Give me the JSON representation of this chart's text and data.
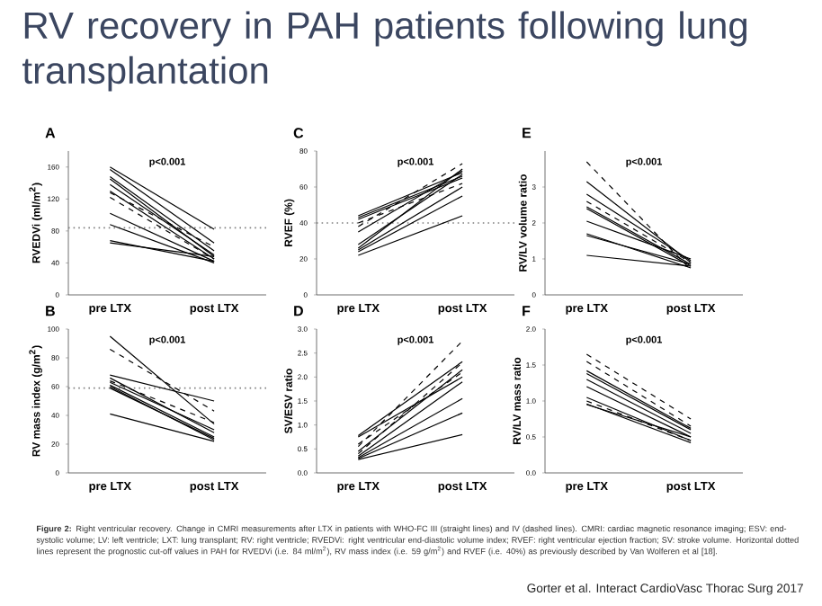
{
  "chart_data": [
    {
      "type": "line",
      "title": "A",
      "subtitle": "p<0.001",
      "ylabel": "RVEDVi (ml/m$^{2}$)",
      "categories": [
        "pre LTX",
        "post LTX"
      ],
      "ylim": [
        0,
        180
      ],
      "yticks": [
        0,
        40,
        80,
        120,
        160
      ],
      "ref_lines": [
        {
          "axis": "y",
          "value": 84,
          "color": "#808080",
          "line_style": "dotted"
        }
      ],
      "annotations": [
        "RV recovery in PAH patients following lung transplantation",
        "**Figure 2:** Right ventricular recovery. Change in CMRI measurements after LTX in patients with WHO-FC III (straight lines) and IV (dashed lines). CMRI: cardiac magnetic resonance imaging; ESV: end-systolic volume; LV: left ventricle; LXT: lung transplant; RV: right ventricle; RVEDVi: right ventricular end-diastolic volume index; RVEF: right ventricular ejection fraction; SV: stroke volume. Horizontal dotted lines represent the prognostic cut-off values in PAH for RVEDVi (i.e. 84 ml/m$^{2}$), RV mass index (i.e. 59 g/m$^{2}$) and RVEF (i.e. 40%) as previously described by Van Wolferen et al [18].",
        "Gorter et al. Interact CardioVasc Thorac Surg 2017"
      ],
      "series": [
        {
          "color": "#000000",
          "line_style": "solid",
          "values": [
            160,
            82
          ]
        },
        {
          "color": "#000000",
          "line_style": "solid",
          "values": [
            157,
            65
          ]
        },
        {
          "color": "#000000",
          "line_style": "solid",
          "values": [
            148,
            55
          ]
        },
        {
          "color": "#000000",
          "line_style": "solid",
          "values": [
            145,
            48
          ]
        },
        {
          "color": "#000000",
          "line_style": "solid",
          "values": [
            138,
            50
          ]
        },
        {
          "color": "#000000",
          "line_style": "solid",
          "values": [
            130,
            45
          ]
        },
        {
          "color": "#000000",
          "line_style": "solid",
          "values": [
            102,
            42
          ]
        },
        {
          "color": "#000000",
          "line_style": "solid",
          "values": [
            88,
            40
          ]
        },
        {
          "color": "#000000",
          "line_style": "solid",
          "values": [
            68,
            42
          ]
        },
        {
          "color": "#000000",
          "line_style": "solid",
          "values": [
            65,
            48
          ]
        },
        {
          "color": "#000000",
          "line_style": "dashed",
          "values": [
            128,
            60
          ]
        },
        {
          "color": "#000000",
          "line_style": "dashed",
          "values": [
            122,
            45
          ]
        }
      ]
    },
    {
      "type": "line",
      "title": "B",
      "subtitle": "p<0.001",
      "ylabel": "RV mass index (g/m$^{2}$)",
      "categories": [
        "pre LTX",
        "post LTX"
      ],
      "ylim": [
        0,
        100
      ],
      "yticks": [
        0,
        20,
        40,
        60,
        80,
        100
      ],
      "ref_lines": [
        {
          "axis": "y",
          "value": 59,
          "color": "#808080",
          "line_style": "dotted"
        }
      ],
      "series": [
        {
          "color": "#000000",
          "line_style": "solid",
          "values": [
            95,
            34
          ]
        },
        {
          "color": "#000000",
          "line_style": "solid",
          "values": [
            68,
            50
          ]
        },
        {
          "color": "#000000",
          "line_style": "solid",
          "values": [
            66,
            28
          ]
        },
        {
          "color": "#000000",
          "line_style": "solid",
          "values": [
            63,
            30
          ]
        },
        {
          "color": "#000000",
          "line_style": "solid",
          "values": [
            61,
            25
          ]
        },
        {
          "color": "#000000",
          "line_style": "solid",
          "values": [
            60,
            23
          ]
        },
        {
          "color": "#000000",
          "line_style": "solid",
          "values": [
            59,
            24
          ]
        },
        {
          "color": "#000000",
          "line_style": "solid",
          "values": [
            41,
            22
          ]
        },
        {
          "color": "#000000",
          "line_style": "dashed",
          "values": [
            86,
            43
          ]
        },
        {
          "color": "#000000",
          "line_style": "dashed",
          "values": [
            64,
            35
          ]
        }
      ]
    },
    {
      "type": "line",
      "title": "C",
      "subtitle": "p<0.001",
      "ylabel": "RVEF (%)",
      "categories": [
        "pre LTX",
        "post LTX"
      ],
      "ylim": [
        0,
        80
      ],
      "yticks": [
        0,
        20,
        40,
        60,
        80
      ],
      "ref_lines": [
        {
          "axis": "y",
          "value": 40,
          "color": "#808080",
          "line_style": "dotted"
        }
      ],
      "series": [
        {
          "color": "#000000",
          "line_style": "solid",
          "values": [
            44,
            68
          ]
        },
        {
          "color": "#000000",
          "line_style": "solid",
          "values": [
            43,
            66
          ]
        },
        {
          "color": "#000000",
          "line_style": "solid",
          "values": [
            42,
            65
          ]
        },
        {
          "color": "#000000",
          "line_style": "solid",
          "values": [
            35,
            69
          ]
        },
        {
          "color": "#000000",
          "line_style": "solid",
          "values": [
            28,
            67
          ]
        },
        {
          "color": "#000000",
          "line_style": "solid",
          "values": [
            26,
            70
          ]
        },
        {
          "color": "#000000",
          "line_style": "solid",
          "values": [
            25,
            60
          ]
        },
        {
          "color": "#000000",
          "line_style": "solid",
          "values": [
            24,
            55
          ]
        },
        {
          "color": "#000000",
          "line_style": "solid",
          "values": [
            22,
            44
          ]
        },
        {
          "color": "#000000",
          "line_style": "dashed",
          "values": [
            38,
            73
          ]
        },
        {
          "color": "#000000",
          "line_style": "dashed",
          "values": [
            40,
            62
          ]
        }
      ]
    },
    {
      "type": "line",
      "title": "D",
      "subtitle": "p<0.001",
      "ylabel": "SV/ESV ratio",
      "categories": [
        "pre LTX",
        "post LTX"
      ],
      "ylim": [
        0,
        3
      ],
      "yticks": [
        {
          "value": 0,
          "label": "0.0"
        },
        {
          "value": 0.5,
          "label": "0.5"
        },
        {
          "value": 1,
          "label": "1.0"
        },
        {
          "value": 1.5,
          "label": "1.5"
        },
        {
          "value": 2,
          "label": "2.0"
        },
        {
          "value": 2.5,
          "label": "2.5"
        },
        {
          "value": 3,
          "label": "3.0"
        }
      ],
      "series": [
        {
          "color": "#000000",
          "line_style": "solid",
          "values": [
            0.78,
            2.32
          ]
        },
        {
          "color": "#000000",
          "line_style": "solid",
          "values": [
            0.75,
            2.0
          ]
        },
        {
          "color": "#000000",
          "line_style": "solid",
          "values": [
            0.45,
            2.15
          ]
        },
        {
          "color": "#000000",
          "line_style": "solid",
          "values": [
            0.35,
            1.9
          ]
        },
        {
          "color": "#000000",
          "line_style": "solid",
          "values": [
            0.32,
            1.55
          ]
        },
        {
          "color": "#000000",
          "line_style": "solid",
          "values": [
            0.3,
            1.25
          ]
        },
        {
          "color": "#000000",
          "line_style": "solid",
          "values": [
            0.28,
            0.8
          ]
        },
        {
          "color": "#000000",
          "line_style": "dashed",
          "values": [
            0.55,
            2.75
          ]
        },
        {
          "color": "#000000",
          "line_style": "dashed",
          "values": [
            0.4,
            2.3
          ]
        },
        {
          "color": "#000000",
          "line_style": "dashed",
          "values": [
            0.6,
            2.1
          ]
        }
      ]
    },
    {
      "type": "line",
      "title": "E",
      "subtitle": "p<0.001",
      "ylabel": "RV/LV volume ratio",
      "categories": [
        "pre LTX",
        "post LTX"
      ],
      "ylim": [
        0,
        4
      ],
      "yticks": [
        0,
        1,
        2,
        3
      ],
      "series": [
        {
          "color": "#000000",
          "line_style": "solid",
          "values": [
            3.15,
            0.9
          ]
        },
        {
          "color": "#000000",
          "line_style": "solid",
          "values": [
            2.8,
            0.95
          ]
        },
        {
          "color": "#000000",
          "line_style": "solid",
          "values": [
            2.45,
            0.85
          ]
        },
        {
          "color": "#000000",
          "line_style": "solid",
          "values": [
            2.4,
            0.8
          ]
        },
        {
          "color": "#000000",
          "line_style": "solid",
          "values": [
            2.05,
            1.0
          ]
        },
        {
          "color": "#000000",
          "line_style": "solid",
          "values": [
            1.7,
            0.75
          ]
        },
        {
          "color": "#000000",
          "line_style": "solid",
          "values": [
            1.65,
            0.85
          ]
        },
        {
          "color": "#000000",
          "line_style": "solid",
          "values": [
            1.1,
            0.8
          ]
        },
        {
          "color": "#000000",
          "line_style": "dashed",
          "values": [
            3.7,
            0.7
          ]
        },
        {
          "color": "#000000",
          "line_style": "dashed",
          "values": [
            2.6,
            0.9
          ]
        }
      ]
    },
    {
      "type": "line",
      "title": "F",
      "subtitle": "p<0.001",
      "ylabel": "RV/LV mass ratio",
      "categories": [
        "pre LTX",
        "post LTX"
      ],
      "ylim": [
        0,
        2
      ],
      "yticks": [
        {
          "value": 0,
          "label": "0.0"
        },
        {
          "value": 0.5,
          "label": "0.5"
        },
        {
          "value": 1,
          "label": "1.0"
        },
        {
          "value": 1.5,
          "label": "1.5"
        },
        {
          "value": 2,
          "label": "2.0"
        }
      ],
      "series": [
        {
          "color": "#000000",
          "line_style": "solid",
          "values": [
            1.42,
            0.62
          ]
        },
        {
          "color": "#000000",
          "line_style": "solid",
          "values": [
            1.38,
            0.6
          ]
        },
        {
          "color": "#000000",
          "line_style": "solid",
          "values": [
            1.3,
            0.55
          ]
        },
        {
          "color": "#000000",
          "line_style": "solid",
          "values": [
            1.2,
            0.5
          ]
        },
        {
          "color": "#000000",
          "line_style": "solid",
          "values": [
            1.05,
            0.45
          ]
        },
        {
          "color": "#000000",
          "line_style": "solid",
          "values": [
            0.96,
            0.42
          ]
        },
        {
          "color": "#000000",
          "line_style": "solid",
          "values": [
            0.95,
            0.5
          ]
        },
        {
          "color": "#000000",
          "line_style": "dashed",
          "values": [
            1.65,
            0.75
          ]
        },
        {
          "color": "#000000",
          "line_style": "dashed",
          "values": [
            1.55,
            0.65
          ]
        },
        {
          "color": "#000000",
          "line_style": "dashed",
          "values": [
            1.0,
            0.45
          ]
        }
      ]
    }
  ]
}
